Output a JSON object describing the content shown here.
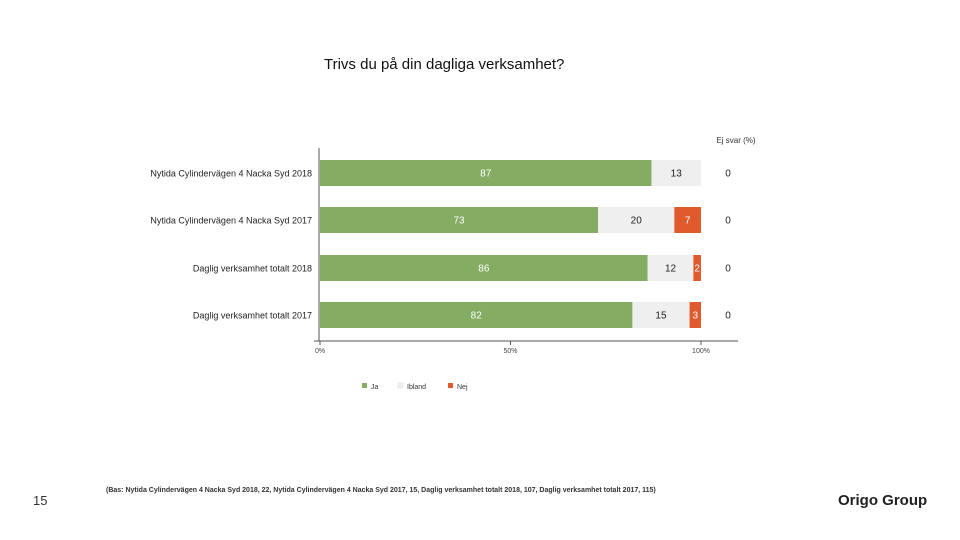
{
  "page": {
    "number": "15",
    "brand": "Origo Group",
    "footnote": "(Bas: Nytida Cylindervägen 4 Nacka Syd 2018, 22, Nytida Cylindervägen 4 Nacka Syd 2017, 15, Daglig verksamhet totalt 2018, 107, Daglig verksamhet totalt 2017, 115)"
  },
  "chart_data": {
    "type": "bar",
    "orientation": "horizontal",
    "stacked": true,
    "title": "Trivs du på din dagliga verksamhet?",
    "side_column_label": "Ej svar (%)",
    "categories": [
      "Nytida Cylindervägen 4 Nacka Syd 2018",
      "Nytida Cylindervägen 4 Nacka Syd 2017",
      "Daglig verksamhet totalt 2018",
      "Daglig verksamhet totalt 2017"
    ],
    "series": [
      {
        "name": "Ja",
        "color": "#84ac62",
        "label_color": "#ffffff",
        "values": [
          87,
          73,
          86,
          82
        ]
      },
      {
        "name": "Ibland",
        "color": "#efefef",
        "label_color": "#222222",
        "values": [
          13,
          20,
          12,
          15
        ]
      },
      {
        "name": "Nej",
        "color": "#e05a2e",
        "label_color": "#ffffff",
        "values": [
          0,
          7,
          2,
          3
        ]
      }
    ],
    "no_answer": [
      0,
      0,
      0,
      0
    ],
    "xlim": [
      0,
      100
    ],
    "xticks": [
      "0%",
      "50%",
      "100%"
    ],
    "legend_position": "bottom"
  }
}
